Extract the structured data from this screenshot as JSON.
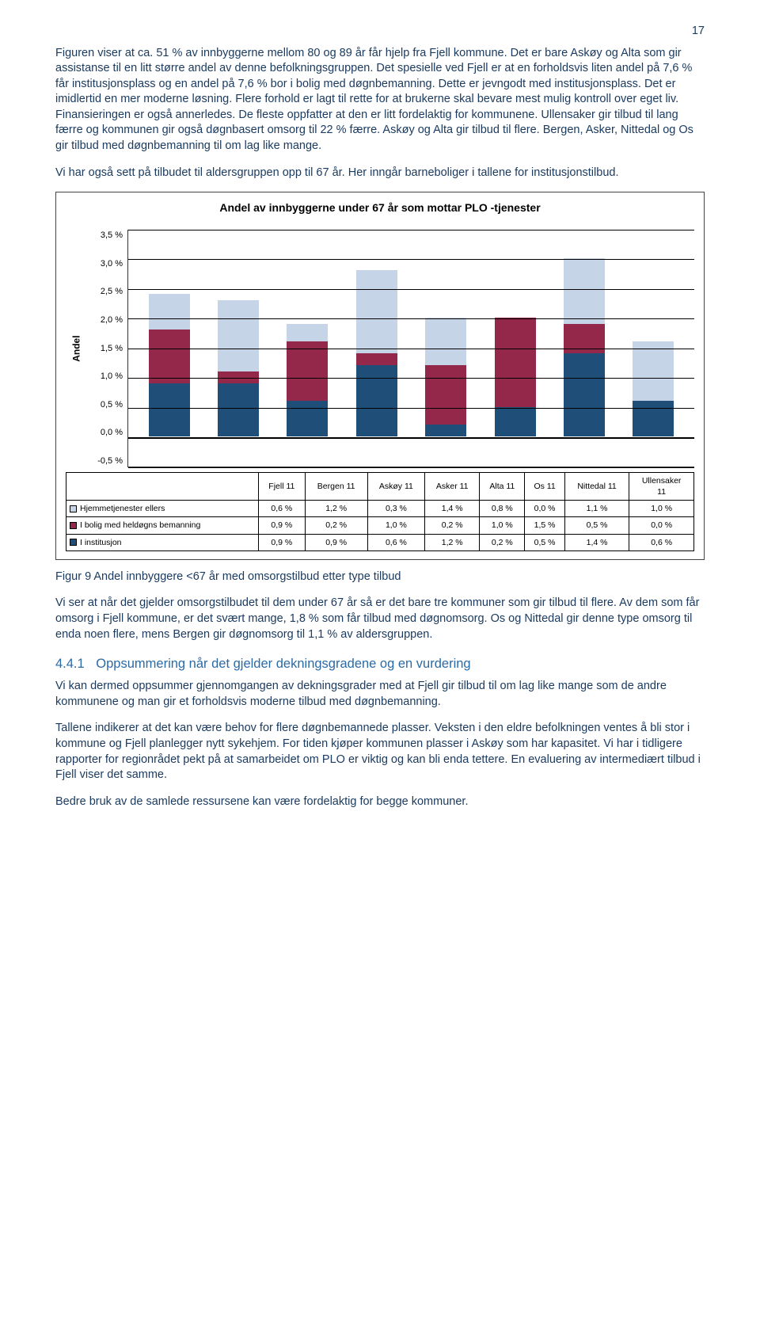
{
  "page_number": "17",
  "para1": "Figuren viser at ca. 51 % av innbyggerne mellom 80 og 89 år får hjelp fra Fjell kommune. Det er bare Askøy og Alta som gir assistanse til en litt større andel av denne befolkningsgruppen. Det spesielle ved Fjell er at en forholdsvis liten andel på 7,6 % får institusjonsplass og en andel på 7,6 % bor i bolig med døgnbemanning. Dette er jevngodt med institusjonsplass. Det er imidlertid en mer moderne løsning. Flere forhold er lagt til rette for at brukerne skal bevare mest mulig kontroll over eget liv. Finansieringen er også annerledes. De fleste oppfatter at den er litt fordelaktig for kommunene. Ullensaker gir tilbud til lang færre og kommunen gir også døgnbasert omsorg til 22 % færre. Askøy og Alta gir tilbud til flere. Bergen, Asker, Nittedal og Os gir tilbud med døgnbemanning til om lag like mange.",
  "para2": "Vi har også sett på tilbudet til aldersgruppen opp til 67 år. Her inngår barneboliger i tallene for institusjonstilbud.",
  "chart": {
    "title": "Andel av innbyggerne under 67 år som mottar PLO -tjenester",
    "ylabel": "Andel",
    "ymin": -0.5,
    "ymax": 3.5,
    "ystep": 0.5,
    "yticks": [
      "3,5 %",
      "3,0 %",
      "2,5 %",
      "2,0 %",
      "1,5 %",
      "1,0 %",
      "0,5 %",
      "0,0 %",
      "-0,5 %"
    ],
    "categories": [
      "Fjell 11",
      "Bergen 11",
      "Askøy 11",
      "Asker 11",
      "Alta 11",
      "Os 11",
      "Nittedal 11",
      "Ullensaker 11"
    ],
    "series": [
      {
        "name": "Hjemmetjenester ellers",
        "color": "#c5d4e6",
        "swatch_border": "#000",
        "values": [
          0.6,
          1.2,
          0.3,
          1.4,
          0.8,
          0.0,
          1.1,
          1.0
        ],
        "display": [
          "0,6 %",
          "1,2 %",
          "0,3 %",
          "1,4 %",
          "0,8 %",
          "0,0 %",
          "1,1 %",
          "1,0 %"
        ]
      },
      {
        "name": "I bolig med heldøgns bemanning",
        "color": "#93284a",
        "swatch_border": "#000",
        "values": [
          0.9,
          0.2,
          1.0,
          0.2,
          1.0,
          1.5,
          0.5,
          0.0
        ],
        "display": [
          "0,9 %",
          "0,2 %",
          "1,0 %",
          "0,2 %",
          "1,0 %",
          "1,5 %",
          "0,5 %",
          "0,0 %"
        ]
      },
      {
        "name": "I institusjon",
        "color": "#1f4e79",
        "swatch_border": "#000",
        "values": [
          0.9,
          0.9,
          0.6,
          1.2,
          0.2,
          0.5,
          1.4,
          0.6
        ],
        "display": [
          "0,9 %",
          "0,9 %",
          "0,6 %",
          "1,2 %",
          "0,2 %",
          "0,5 %",
          "1,4 %",
          "0,6 %"
        ]
      }
    ]
  },
  "fig_caption": "Figur 9  Andel innbyggere <67 år med omsorgstilbud etter type tilbud",
  "para3": "Vi ser at når det gjelder omsorgstilbudet til dem under 67 år så er det bare tre kommuner som gir tilbud til flere. Av dem som får omsorg i Fjell kommune, er det svært mange, 1,8 % som får tilbud med døgnomsorg. Os og Nittedal gir denne type omsorg til enda noen flere, mens Bergen gir døgnomsorg til 1,1 % av aldersgruppen.",
  "section": {
    "num": "4.4.1",
    "title": "Oppsummering når det gjelder dekningsgradene og en vurdering"
  },
  "para4": "Vi kan dermed oppsummer gjennomgangen av dekningsgrader med at Fjell gir tilbud til om lag like mange som de andre kommunene og man gir et forholdsvis moderne tilbud med døgnbemanning.",
  "para5": "Tallene indikerer at det kan være behov for flere døgnbemannede plasser. Veksten i den eldre befolkningen ventes å bli stor i kommune og Fjell planlegger nytt sykehjem. For tiden kjøper kommunen plasser i Askøy som har kapasitet. Vi har i tidligere rapporter for regionrådet pekt på at samarbeidet om PLO er viktig og kan bli enda tettere. En evaluering av intermediært tilbud i Fjell viser det samme.",
  "para6": "Bedre bruk av de samlede ressursene kan være fordelaktig for begge kommuner."
}
